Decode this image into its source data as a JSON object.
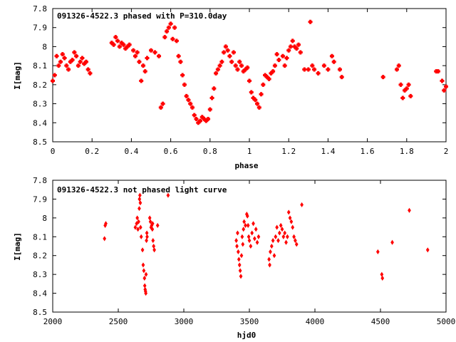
{
  "chart_data": [
    {
      "type": "scatter",
      "title": "091326-4522.3 phased with P=310.0day",
      "xlabel": "phase",
      "ylabel": "I[mag]",
      "xlim": [
        0,
        2
      ],
      "ylim": [
        8.5,
        7.8
      ],
      "y_inverted": true,
      "grid": false,
      "marker": "plus",
      "color": "#ff0000",
      "xticks": [
        0,
        0.2,
        0.4,
        0.6,
        0.8,
        1,
        1.2,
        1.4,
        1.6,
        1.8,
        2
      ],
      "xtick_labels": [
        "0",
        "0.2",
        "0.4",
        "0.6",
        "0.8",
        "1",
        "1.2",
        "1.4",
        "1.6",
        "1.8",
        "2"
      ],
      "yticks": [
        7.8,
        7.9,
        8.0,
        8.1,
        8.2,
        8.3,
        8.4,
        8.5
      ],
      "ytick_labels": [
        "7.8",
        "7.9",
        "8",
        "8.1",
        "8.2",
        "8.3",
        "8.4",
        "8.5"
      ],
      "series": [
        {
          "x": [
            0.0,
            0.01,
            0.02,
            0.03,
            0.04,
            0.05,
            0.06,
            0.07,
            0.08,
            0.09,
            0.1,
            0.11,
            0.12,
            0.13,
            0.14,
            0.15,
            0.16,
            0.17,
            0.18,
            0.19,
            0.3,
            0.31,
            0.32,
            0.33,
            0.34,
            0.35,
            0.36,
            0.37,
            0.38,
            0.39,
            0.41,
            0.42,
            0.43,
            0.44,
            0.45,
            0.46,
            0.47,
            0.48,
            0.5,
            0.52,
            0.54,
            0.55,
            0.56,
            0.57,
            0.58,
            0.59,
            0.6,
            0.61,
            0.62,
            0.63,
            0.64,
            0.65,
            0.66,
            0.67,
            0.68,
            0.69,
            0.7,
            0.71,
            0.72,
            0.73,
            0.74,
            0.75,
            0.76,
            0.77,
            0.78,
            0.79,
            0.8,
            0.81,
            0.82,
            0.83,
            0.84,
            0.85,
            0.86,
            0.87,
            0.88,
            0.89,
            0.9,
            0.91,
            0.92,
            0.93,
            0.94,
            0.95,
            0.96,
            0.97,
            0.98,
            0.99,
            1.0,
            1.01,
            1.02,
            1.03,
            1.04,
            1.05,
            1.06,
            1.07,
            1.08,
            1.09,
            1.1,
            1.11,
            1.12,
            1.13,
            1.14,
            1.15,
            1.17,
            1.18,
            1.19,
            1.2,
            1.21,
            1.22,
            1.23,
            1.24,
            1.25,
            1.26,
            1.28,
            1.3,
            1.31,
            1.32,
            1.33,
            1.35,
            1.38,
            1.4,
            1.42,
            1.43,
            1.46,
            1.47,
            1.68,
            1.75,
            1.76,
            1.77,
            1.78,
            1.79,
            1.8,
            1.81,
            1.82,
            1.95,
            1.96,
            1.98,
            1.99,
            2.0
          ],
          "y": [
            8.18,
            8.15,
            8.05,
            8.1,
            8.08,
            8.04,
            8.06,
            8.1,
            8.12,
            8.08,
            8.07,
            8.03,
            8.05,
            8.1,
            8.08,
            8.06,
            8.09,
            8.08,
            8.12,
            8.14,
            7.98,
            7.99,
            7.95,
            7.97,
            8.0,
            7.98,
            7.99,
            8.01,
            8.0,
            7.99,
            8.02,
            8.05,
            8.03,
            8.08,
            8.18,
            8.1,
            8.13,
            8.06,
            8.02,
            8.03,
            8.05,
            8.32,
            8.3,
            7.95,
            7.92,
            7.9,
            7.88,
            7.96,
            7.9,
            7.97,
            8.05,
            8.08,
            8.15,
            8.2,
            8.26,
            8.28,
            8.3,
            8.32,
            8.36,
            8.38,
            8.4,
            8.39,
            8.37,
            8.38,
            8.39,
            8.38,
            8.33,
            8.27,
            8.22,
            8.14,
            8.12,
            8.1,
            8.08,
            8.03,
            8.0,
            8.02,
            8.05,
            8.08,
            8.03,
            8.1,
            8.12,
            8.08,
            8.1,
            8.13,
            8.12,
            8.11,
            8.18,
            8.24,
            8.27,
            8.28,
            8.3,
            8.32,
            8.25,
            8.2,
            8.15,
            8.16,
            8.17,
            8.14,
            8.13,
            8.1,
            8.04,
            8.07,
            8.05,
            8.1,
            8.06,
            8.02,
            8.0,
            7.97,
            8.0,
            8.01,
            7.99,
            8.03,
            8.12,
            8.12,
            7.87,
            8.1,
            8.12,
            8.14,
            8.1,
            8.12,
            8.05,
            8.08,
            8.12,
            8.16,
            8.16,
            8.12,
            8.1,
            8.2,
            8.27,
            8.23,
            8.22,
            8.2,
            8.26,
            8.13,
            8.13,
            8.18,
            8.23,
            8.21
          ]
        }
      ]
    },
    {
      "type": "scatter",
      "title": "091326-4522.3 not phased light curve",
      "xlabel": "hjd0",
      "ylabel": "I[mag]",
      "xlim": [
        2000,
        5000
      ],
      "ylim": [
        8.5,
        7.8
      ],
      "y_inverted": true,
      "grid": false,
      "marker": "diamond",
      "color": "#ff0000",
      "xticks": [
        2000,
        2500,
        3000,
        3500,
        4000,
        4500,
        5000
      ],
      "xtick_labels": [
        "2000",
        "2500",
        "3000",
        "3500",
        "4000",
        "4500",
        "5000"
      ],
      "yticks": [
        7.8,
        7.9,
        8.0,
        8.1,
        8.2,
        8.3,
        8.4,
        8.5
      ],
      "ytick_labels": [
        "7.8",
        "7.9",
        "8",
        "8.1",
        "8.2",
        "8.3",
        "8.4",
        "8.5"
      ],
      "series": [
        {
          "x": [
            2395,
            2400,
            2405,
            2630,
            2640,
            2645,
            2650,
            2655,
            2660,
            2662,
            2665,
            2668,
            2670,
            2675,
            2685,
            2690,
            2695,
            2700,
            2702,
            2705,
            2708,
            2710,
            2712,
            2715,
            2718,
            2720,
            2740,
            2745,
            2750,
            2755,
            2760,
            2762,
            2765,
            2770,
            2775,
            2800,
            2880,
            3400,
            3405,
            3410,
            3415,
            3420,
            3425,
            3430,
            3435,
            3440,
            3445,
            3450,
            3455,
            3460,
            3470,
            3480,
            3485,
            3490,
            3495,
            3500,
            3510,
            3520,
            3530,
            3540,
            3550,
            3560,
            3570,
            3650,
            3655,
            3660,
            3670,
            3680,
            3690,
            3700,
            3710,
            3720,
            3730,
            3740,
            3750,
            3760,
            3770,
            3780,
            3790,
            3800,
            3810,
            3820,
            3830,
            3840,
            3850,
            3860,
            3900,
            4480,
            4510,
            4515,
            4590,
            4720,
            4860
          ],
          "y": [
            8.11,
            8.04,
            8.03,
            8.05,
            8.03,
            8.0,
            8.06,
            8.02,
            7.95,
            7.9,
            7.88,
            7.92,
            8.05,
            8.1,
            8.17,
            8.25,
            8.28,
            8.32,
            8.36,
            8.38,
            8.39,
            8.4,
            8.3,
            8.12,
            8.08,
            8.1,
            8.0,
            8.02,
            8.05,
            8.04,
            8.06,
            8.03,
            8.12,
            8.15,
            8.17,
            8.04,
            7.88,
            8.12,
            8.15,
            8.08,
            8.18,
            8.22,
            8.25,
            8.28,
            8.31,
            8.2,
            8.1,
            8.14,
            8.06,
            8.02,
            8.04,
            7.98,
            7.99,
            8.04,
            8.1,
            8.12,
            8.15,
            8.08,
            8.03,
            8.11,
            8.06,
            8.13,
            8.1,
            8.22,
            8.25,
            8.18,
            8.15,
            8.12,
            8.2,
            8.1,
            8.05,
            8.12,
            8.08,
            8.04,
            8.06,
            8.1,
            8.08,
            8.13,
            8.1,
            7.97,
            8.0,
            8.02,
            8.05,
            8.1,
            8.12,
            8.14,
            7.93,
            8.18,
            8.3,
            8.32,
            8.13,
            7.96,
            8.17
          ]
        }
      ]
    }
  ]
}
